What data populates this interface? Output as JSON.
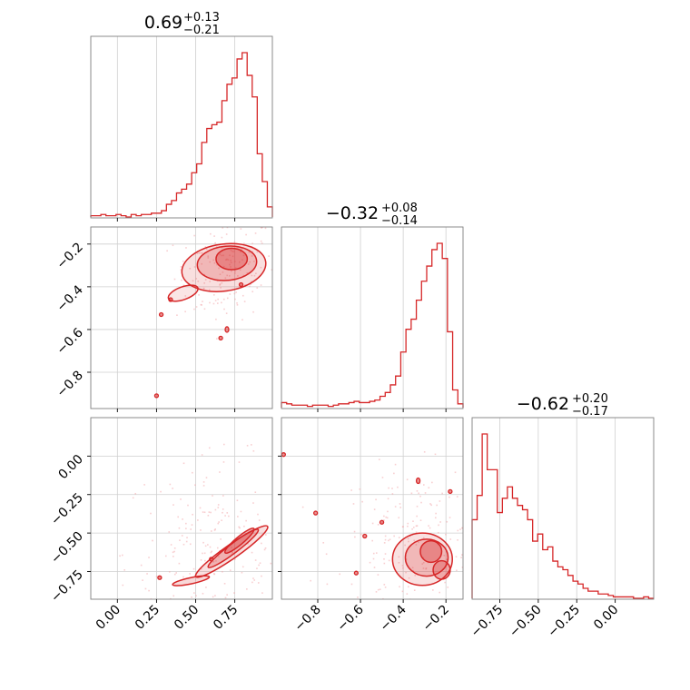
{
  "chart_data": {
    "type": "corner",
    "color": "#d62728",
    "grid": true,
    "params": [
      {
        "title": "0.69",
        "title_upper": "+0.13",
        "title_lower": "−0.21",
        "range": [
          -0.17,
          0.99
        ],
        "ticks": [
          0.0,
          0.25,
          0.5,
          0.75
        ],
        "tick_labels": [
          "0.00",
          "0.25",
          "0.50",
          "0.75"
        ],
        "hist": [
          1,
          1,
          2,
          1,
          1,
          2,
          1,
          0,
          2,
          1,
          2,
          2,
          3,
          3,
          5,
          10,
          13,
          19,
          22,
          26,
          35,
          42,
          59,
          70,
          73,
          75,
          92,
          105,
          110,
          125,
          130,
          112,
          95,
          50,
          28,
          8
        ]
      },
      {
        "title": "−0.32",
        "title_upper": "+0.08",
        "title_lower": "−0.14",
        "range": [
          -0.97,
          -0.12
        ],
        "ticks": [
          -0.8,
          -0.6,
          -0.4,
          -0.2
        ],
        "tick_labels": [
          "−0.8",
          "−0.6",
          "−0.4",
          "−0.2"
        ],
        "hist": [
          4,
          3,
          2,
          2,
          2,
          1,
          2,
          2,
          2,
          1,
          2,
          3,
          3,
          4,
          5,
          4,
          4,
          5,
          6,
          9,
          12,
          18,
          25,
          44,
          62,
          70,
          85,
          100,
          112,
          125,
          130,
          118,
          60,
          14,
          3
        ]
      },
      {
        "title": "−0.62",
        "title_upper": "+0.20",
        "title_lower": "−0.17",
        "range": [
          -0.93,
          0.25
        ],
        "ticks": [
          -0.75,
          -0.5,
          -0.25,
          0.0
        ],
        "tick_labels": [
          "−0.75",
          "−0.50",
          "−0.25",
          "0.00"
        ],
        "hist": [
          55,
          72,
          115,
          90,
          90,
          60,
          70,
          78,
          70,
          65,
          62,
          55,
          40,
          45,
          34,
          36,
          26,
          22,
          20,
          16,
          12,
          10,
          7,
          5,
          5,
          3,
          3,
          2,
          1,
          1,
          1,
          1,
          0,
          0,
          1,
          0
        ]
      }
    ]
  }
}
